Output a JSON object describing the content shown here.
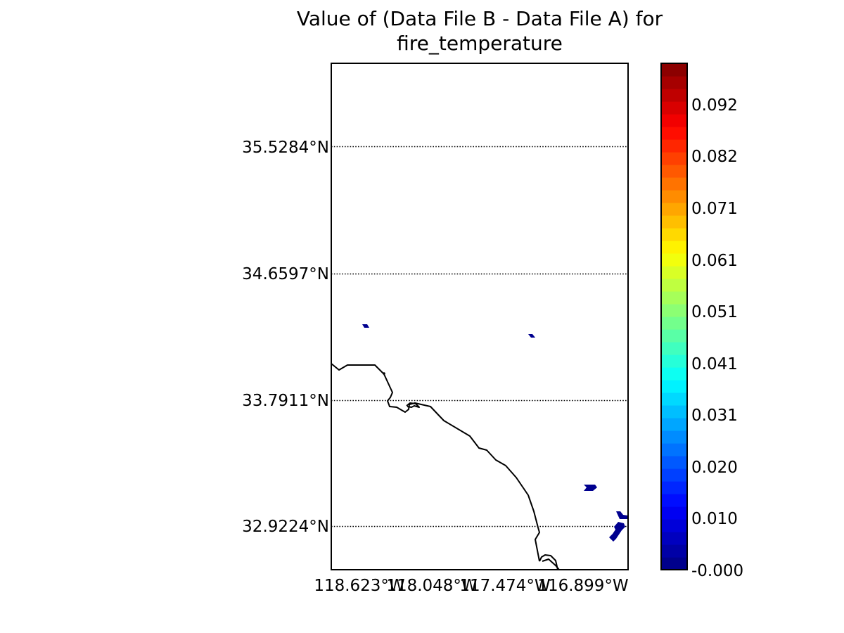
{
  "title_lines": [
    "Value of (Data File B - Data File A) for",
    "fire_temperature"
  ],
  "colors": {
    "coastline": "#000000",
    "data_patch": "#00008f",
    "gridline": "#000000",
    "colormap": "jet"
  },
  "chart_data": {
    "type": "heatmap",
    "title": "Value of (Data File B - Data File A) for fire_temperature",
    "projection": "lat-lon map with coastline",
    "latitude_ticks": [
      "35.5284°N",
      "34.6597°N",
      "33.7911°N",
      "32.9224°N"
    ],
    "latitude_values": [
      35.5284,
      34.6597,
      33.7911,
      32.9224
    ],
    "longitude_ticks": [
      "118.623°W",
      "118.048°W",
      "117.474°W",
      "116.899°W"
    ],
    "longitude_values": [
      -118.623,
      -118.048,
      -117.474,
      -116.899
    ],
    "grid": "dotted latitude lines",
    "colorbar": {
      "ticks": [
        "0.092",
        "0.082",
        "0.071",
        "0.061",
        "0.051",
        "0.041",
        "0.031",
        "0.020",
        "0.010",
        "-0.000"
      ],
      "tick_values": [
        0.092,
        0.082,
        0.071,
        0.061,
        0.051,
        0.041,
        0.031,
        0.02,
        0.01,
        0.0
      ],
      "range": [
        0.0,
        0.102
      ],
      "levels": 40
    },
    "visible_patches": [
      {
        "name": "patch-north-west",
        "value": 0.0
      },
      {
        "name": "patch-north-east",
        "value": 0.0
      },
      {
        "name": "patch-south-east-1",
        "value": 0.0
      },
      {
        "name": "patch-south-east-2",
        "value": 0.0
      },
      {
        "name": "patch-south-east-3",
        "value": 0.0
      }
    ]
  }
}
